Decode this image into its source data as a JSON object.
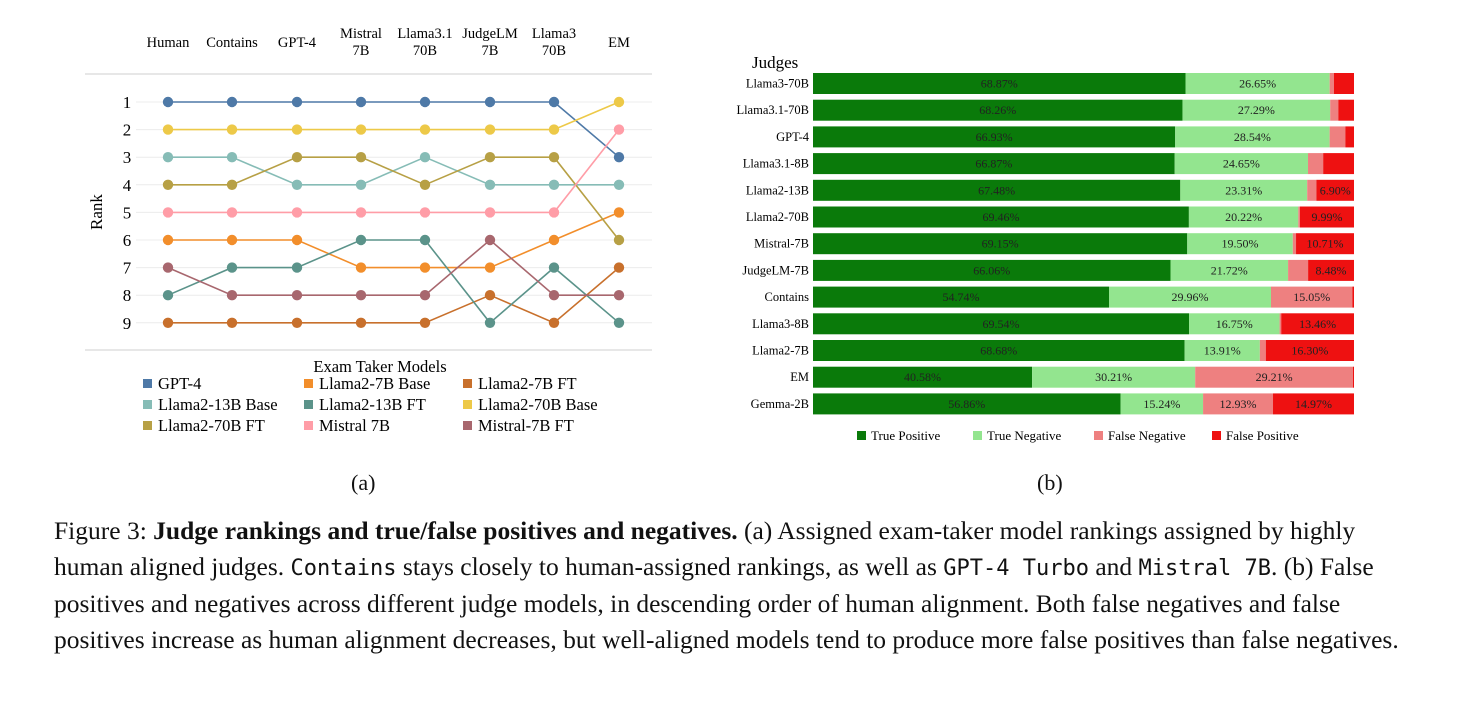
{
  "chart_data": [
    {
      "type": "line",
      "panel": "(a)",
      "xlabel": "",
      "ylabel": "Rank",
      "legend_title": "Exam Taker Models",
      "legend_position": "bottom",
      "x": [
        "Human",
        "Contains",
        "GPT-4",
        "Mistral 7B",
        "Llama3.1 70B",
        "JudgeLM 7B",
        "Llama3 70B",
        "EM"
      ],
      "ylim": [
        1,
        9
      ],
      "y_inverted": true,
      "grid": true,
      "series": [
        {
          "name": "GPT-4",
          "color": "#4e79a7",
          "values": [
            1,
            1,
            1,
            1,
            1,
            1,
            1,
            3
          ]
        },
        {
          "name": "Llama2-7B Base",
          "color": "#f28e2b",
          "values": [
            6,
            6,
            6,
            7,
            7,
            7,
            6,
            5
          ]
        },
        {
          "name": "Llama2-7B FT",
          "color": "#c8702c",
          "values": [
            9,
            9,
            9,
            9,
            9,
            8,
            9,
            7
          ]
        },
        {
          "name": "Llama2-13B Base",
          "color": "#86bcb6",
          "values": [
            3,
            3,
            4,
            4,
            3,
            4,
            4,
            4
          ]
        },
        {
          "name": "Llama2-13B FT",
          "color": "#5b938a",
          "values": [
            8,
            7,
            7,
            6,
            6,
            9,
            7,
            9
          ]
        },
        {
          "name": "Llama2-70B Base",
          "color": "#edc948",
          "values": [
            2,
            2,
            2,
            2,
            2,
            2,
            2,
            1
          ]
        },
        {
          "name": "Llama2-70B FT",
          "color": "#b7a045",
          "values": [
            4,
            4,
            3,
            3,
            4,
            3,
            3,
            6
          ]
        },
        {
          "name": "Mistral 7B",
          "color": "#ff9da7",
          "values": [
            5,
            5,
            5,
            5,
            5,
            5,
            5,
            2
          ]
        },
        {
          "name": "Mistral-7B FT",
          "color": "#a8676e",
          "values": [
            7,
            8,
            8,
            8,
            8,
            6,
            8,
            8
          ]
        }
      ]
    },
    {
      "type": "bar",
      "stacked": true,
      "orientation": "horizontal",
      "panel": "(b)",
      "ylabel": "Judges",
      "xlim": [
        0,
        100
      ],
      "legend_position": "bottom",
      "categories": [
        "Llama3-70B",
        "Llama3.1-70B",
        "GPT-4",
        "Llama3.1-8B",
        "Llama2-13B",
        "Llama2-70B",
        "Mistral-7B",
        "JudgeLM-7B",
        "Contains",
        "Llama3-8B",
        "Llama2-7B",
        "EM",
        "Gemma-2B"
      ],
      "series": [
        {
          "name": "True Positive",
          "color": "#0a7a0a",
          "values": [
            68.87,
            68.26,
            66.93,
            66.87,
            67.48,
            69.46,
            69.15,
            66.06,
            54.74,
            69.54,
            68.68,
            40.58,
            56.86
          ],
          "labels": [
            "68.87%",
            "68.26%",
            "66.93%",
            "66.87%",
            "67.48%",
            "69.46%",
            "69.15%",
            "66.06%",
            "54.74%",
            "69.54%",
            "68.68%",
            "40.58%",
            "56.86%"
          ]
        },
        {
          "name": "True Negative",
          "color": "#93e58f",
          "values": [
            26.65,
            27.29,
            28.54,
            24.65,
            23.31,
            20.22,
            19.5,
            21.72,
            29.96,
            16.75,
            13.91,
            30.21,
            15.24
          ],
          "labels": [
            "26.65%",
            "27.29%",
            "28.54%",
            "24.65%",
            "23.31%",
            "20.22%",
            "19.50%",
            "21.72%",
            "29.96%",
            "16.75%",
            "13.91%",
            "30.21%",
            "15.24%"
          ]
        },
        {
          "name": "False Negative",
          "color": "#ee8080",
          "values": [
            0.8,
            1.5,
            2.9,
            2.8,
            1.7,
            0.3,
            0.6,
            3.7,
            15.05,
            0.3,
            1.1,
            29.21,
            12.93
          ],
          "labels": [
            "",
            "",
            "",
            "",
            "",
            "",
            "",
            "",
            "15.05%",
            "",
            "",
            "29.21%",
            "12.93%"
          ]
        },
        {
          "name": "False Positive",
          "color": "#ee1111",
          "values": [
            3.7,
            2.9,
            1.6,
            5.7,
            6.9,
            9.99,
            10.71,
            8.48,
            0.3,
            13.46,
            16.3,
            0.2,
            14.97
          ],
          "labels": [
            "",
            "",
            "",
            "",
            "6.90%",
            "9.99%",
            "10.71%",
            "8.48%",
            "",
            "13.46%",
            "16.30%",
            "",
            "14.97%"
          ]
        }
      ]
    }
  ],
  "panels": {
    "a_label": "(a)",
    "b_label": "(b)"
  },
  "caption": {
    "prefix": "Figure 3: ",
    "title": "Judge rankings and true/false positives and negatives.",
    "t1": " (a) Assigned exam-taker model rankings assigned by highly human aligned judges. ",
    "code_contains": "Contains",
    "t2": " stays closely to human-assigned rankings, as well as ",
    "code_gpt4": "GPT-4 Turbo",
    "t3": " and ",
    "code_mistral": "Mistral 7B",
    "t4": ". (b) False positives and negatives across different judge models, in descending order of human alignment. Both false negatives and false positives increase as human alignment decreases, but well-aligned models tend to produce more false positives than false negatives."
  }
}
